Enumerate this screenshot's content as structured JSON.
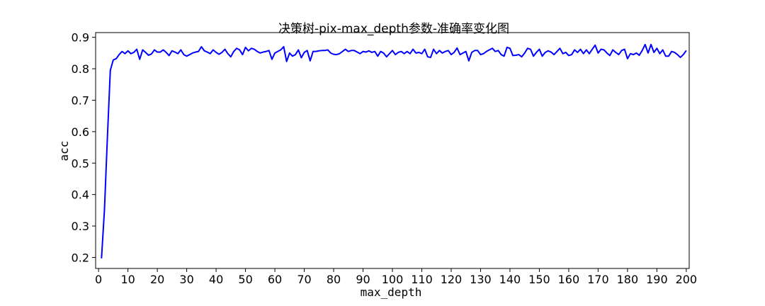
{
  "chart_data": {
    "type": "line",
    "title": "决策树-pix-max_depth参数-准确率变化图",
    "xlabel": "max_depth",
    "ylabel": "acc",
    "xlim": [
      -1,
      201
    ],
    "ylim": [
      0.165,
      0.915
    ],
    "xticks": [
      0,
      10,
      20,
      30,
      40,
      50,
      60,
      70,
      80,
      90,
      100,
      110,
      120,
      130,
      140,
      150,
      160,
      170,
      180,
      190,
      200
    ],
    "yticks": [
      0.2,
      0.3,
      0.4,
      0.5,
      0.6,
      0.7,
      0.8,
      0.9
    ],
    "grid": false,
    "legend": "none",
    "series": [
      {
        "color": "#0000ff",
        "x": [
          1,
          2,
          3,
          4,
          5,
          6,
          7,
          8,
          9,
          10,
          11,
          12,
          13,
          14,
          15,
          16,
          17,
          18,
          19,
          20,
          21,
          22,
          23,
          24,
          25,
          26,
          27,
          28,
          29,
          30,
          31,
          32,
          33,
          34,
          35,
          36,
          37,
          38,
          39,
          40,
          41,
          42,
          43,
          44,
          45,
          46,
          47,
          48,
          49,
          50,
          51,
          52,
          53,
          54,
          55,
          56,
          57,
          58,
          59,
          60,
          61,
          62,
          63,
          64,
          65,
          66,
          67,
          68,
          69,
          70,
          71,
          72,
          73,
          74,
          75,
          76,
          77,
          78,
          79,
          80,
          81,
          82,
          83,
          84,
          85,
          86,
          87,
          88,
          89,
          90,
          91,
          92,
          93,
          94,
          95,
          96,
          97,
          98,
          99,
          100,
          101,
          102,
          103,
          104,
          105,
          106,
          107,
          108,
          109,
          110,
          111,
          112,
          113,
          114,
          115,
          116,
          117,
          118,
          119,
          120,
          121,
          122,
          123,
          124,
          125,
          126,
          127,
          128,
          129,
          130,
          131,
          132,
          133,
          134,
          135,
          136,
          137,
          138,
          139,
          140,
          141,
          142,
          143,
          144,
          145,
          146,
          147,
          148,
          149,
          150,
          151,
          152,
          153,
          154,
          155,
          156,
          157,
          158,
          159,
          160,
          161,
          162,
          163,
          164,
          165,
          166,
          167,
          168,
          169,
          170,
          171,
          172,
          173,
          174,
          175,
          176,
          177,
          178,
          179,
          180,
          181,
          182,
          183,
          184,
          185,
          186,
          187,
          188,
          189,
          190,
          191,
          192,
          193,
          194,
          195,
          196,
          197,
          198,
          199,
          200
        ],
        "y": [
          0.197,
          0.35,
          0.58,
          0.795,
          0.828,
          0.832,
          0.845,
          0.855,
          0.848,
          0.857,
          0.848,
          0.852,
          0.862,
          0.83,
          0.86,
          0.852,
          0.843,
          0.847,
          0.86,
          0.853,
          0.853,
          0.86,
          0.852,
          0.842,
          0.857,
          0.853,
          0.848,
          0.86,
          0.845,
          0.84,
          0.845,
          0.85,
          0.853,
          0.855,
          0.87,
          0.857,
          0.853,
          0.848,
          0.86,
          0.852,
          0.846,
          0.852,
          0.862,
          0.848,
          0.838,
          0.855,
          0.865,
          0.86,
          0.845,
          0.868,
          0.857,
          0.865,
          0.862,
          0.855,
          0.85,
          0.853,
          0.855,
          0.858,
          0.83,
          0.85,
          0.855,
          0.86,
          0.87,
          0.823,
          0.85,
          0.84,
          0.845,
          0.86,
          0.835,
          0.852,
          0.858,
          0.825,
          0.855,
          0.855,
          0.857,
          0.858,
          0.858,
          0.86,
          0.85,
          0.846,
          0.845,
          0.848,
          0.855,
          0.862,
          0.855,
          0.858,
          0.858,
          0.853,
          0.848,
          0.855,
          0.853,
          0.857,
          0.852,
          0.855,
          0.84,
          0.855,
          0.85,
          0.838,
          0.848,
          0.858,
          0.845,
          0.852,
          0.855,
          0.848,
          0.855,
          0.848,
          0.862,
          0.85,
          0.852,
          0.848,
          0.862,
          0.838,
          0.836,
          0.862,
          0.848,
          0.858,
          0.85,
          0.855,
          0.858,
          0.845,
          0.852,
          0.866,
          0.845,
          0.85,
          0.855,
          0.825,
          0.852,
          0.858,
          0.858,
          0.845,
          0.848,
          0.855,
          0.86,
          0.865,
          0.855,
          0.858,
          0.845,
          0.84,
          0.868,
          0.865,
          0.842,
          0.843,
          0.845,
          0.838,
          0.85,
          0.865,
          0.862,
          0.84,
          0.852,
          0.862,
          0.84,
          0.852,
          0.857,
          0.853,
          0.845,
          0.855,
          0.865,
          0.848,
          0.852,
          0.842,
          0.845,
          0.86,
          0.852,
          0.862,
          0.848,
          0.86,
          0.848,
          0.862,
          0.875,
          0.85,
          0.862,
          0.86,
          0.85,
          0.842,
          0.86,
          0.852,
          0.845,
          0.858,
          0.862,
          0.832,
          0.848,
          0.845,
          0.85,
          0.843,
          0.858,
          0.877,
          0.85,
          0.877,
          0.852,
          0.865,
          0.848,
          0.86,
          0.84,
          0.84,
          0.855,
          0.852,
          0.845,
          0.836,
          0.845,
          0.858
        ]
      }
    ]
  }
}
